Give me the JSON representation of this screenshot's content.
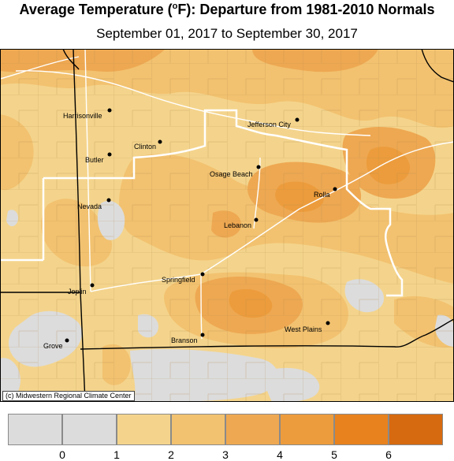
{
  "title": "Average Temperature (°F): Departure from 1981-2010 Normals",
  "title_parts": {
    "main": "Average Temperature (",
    "sup": "o",
    "rest": "F): Departure from 1981-2010 Normals"
  },
  "subtitle": "September 01, 2017 to September 30, 2017",
  "credit": "(c) Midwestern Regional Climate Center",
  "legend": {
    "ticks": [
      "0",
      "1",
      "2",
      "3",
      "4",
      "5",
      "6"
    ],
    "colors": [
      "#dcdcdc",
      "#dcdcdc",
      "#f4d48c",
      "#f2c270",
      "#eea852",
      "#ec9c3c",
      "#e8821e",
      "#d66a10"
    ]
  },
  "map_colors": {
    "near_normal": "#dcdcdc",
    "band_1_2": "#f4d48c",
    "band_2_3": "#f2c270",
    "band_3_4": "#eea852",
    "band_4_5": "#ec9c3c",
    "band_5_6": "#e8821e",
    "county_line": "#b0884a",
    "state_line": "#000000",
    "cwa_line": "#ffffff"
  },
  "cities": [
    {
      "name": "Harrisonville"
    },
    {
      "name": "Clinton"
    },
    {
      "name": "Butler"
    },
    {
      "name": "Jefferson City"
    },
    {
      "name": "Osage Beach"
    },
    {
      "name": "Rolla"
    },
    {
      "name": "Nevada"
    },
    {
      "name": "Lebanon"
    },
    {
      "name": "Springfield"
    },
    {
      "name": "Joplin"
    },
    {
      "name": "West Plains"
    },
    {
      "name": "Branson"
    },
    {
      "name": "Grove"
    }
  ]
}
